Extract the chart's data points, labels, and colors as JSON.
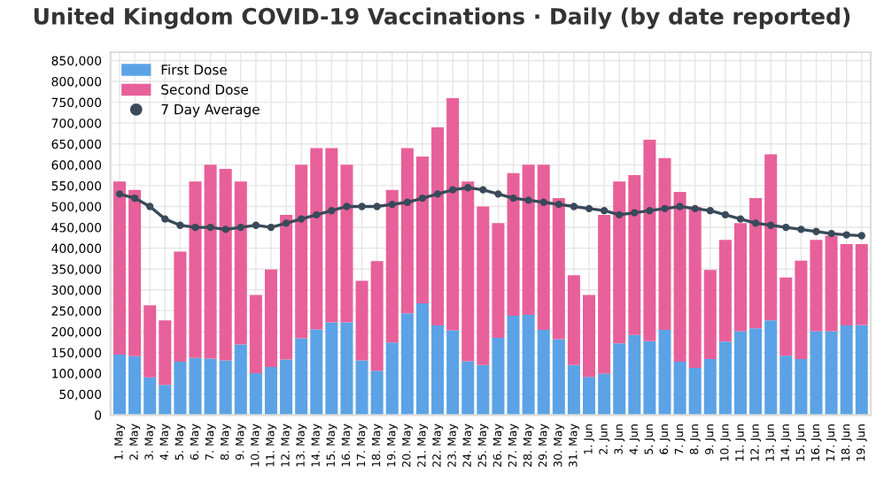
{
  "chart_data": {
    "type": "bar",
    "stacked": true,
    "title": "United Kingdom COVID-19 Vaccinations · Daily (by date reported)",
    "categories": [
      "1. May",
      "2. May",
      "3. May",
      "4. May",
      "5. May",
      "6. May",
      "7. May",
      "8. May",
      "9. May",
      "10. May",
      "11. May",
      "12. May",
      "13. May",
      "14. May",
      "15. May",
      "16. May",
      "17. May",
      "18. May",
      "19. May",
      "20. May",
      "21. May",
      "22. May",
      "23. May",
      "24. May",
      "25. May",
      "26. May",
      "27. May",
      "28. May",
      "29. May",
      "30. May",
      "31. May",
      "1. Jun",
      "2. Jun",
      "3. Jun",
      "4. Jun",
      "5. Jun",
      "6. Jun",
      "7. Jun",
      "8. Jun",
      "9. Jun",
      "10. Jun",
      "11. Jun",
      "12. Jun",
      "13. Jun",
      "14. Jun",
      "15. Jun",
      "16. Jun",
      "17. Jun",
      "18. Jun",
      "19. Jun"
    ],
    "series": [
      {
        "name": "First Dose",
        "color": "#5ba3e6",
        "values": [
          145000,
          141000,
          90000,
          72000,
          128000,
          137000,
          135000,
          131000,
          169000,
          100000,
          115000,
          133000,
          184000,
          205000,
          222000,
          222000,
          131000,
          106000,
          174000,
          244000,
          268000,
          215000,
          203000,
          129000,
          120000,
          185000,
          238000,
          240000,
          204000,
          182000,
          120000,
          91000,
          99000,
          172000,
          192000,
          177000,
          204000,
          128000,
          113000,
          134000,
          176000,
          201000,
          208000,
          227000,
          142000,
          134000,
          201000,
          201000,
          215000,
          216000
        ]
      },
      {
        "name": "Second Dose",
        "color": "#e8609a",
        "values": [
          415000,
          399000,
          173000,
          155000,
          264000,
          423000,
          465000,
          459000,
          391000,
          188000,
          234000,
          347000,
          416000,
          435000,
          418000,
          378000,
          191000,
          263000,
          366000,
          396000,
          352000,
          475000,
          557000,
          431000,
          380000,
          275000,
          342000,
          360000,
          396000,
          338000,
          215000,
          197000,
          381000,
          388000,
          383000,
          483000,
          412000,
          407000,
          386000,
          214000,
          244000,
          259000,
          312000,
          398000,
          188000,
          236000,
          219000,
          229000,
          195000,
          194000
        ]
      },
      {
        "name": "7 Day Average",
        "type": "line",
        "color": "#3a4a5a",
        "marker": "circle",
        "values": [
          530000,
          520000,
          500000,
          470000,
          455000,
          450000,
          450000,
          445000,
          450000,
          455000,
          450000,
          460000,
          470000,
          480000,
          490000,
          500000,
          500000,
          500000,
          505000,
          510000,
          520000,
          530000,
          540000,
          545000,
          540000,
          530000,
          520000,
          515000,
          510000,
          505000,
          500000,
          495000,
          490000,
          480000,
          485000,
          490000,
          495000,
          500000,
          495000,
          490000,
          480000,
          470000,
          460000,
          455000,
          450000,
          445000,
          440000,
          435000,
          432000,
          430000
        ]
      }
    ],
    "ylim": [
      0,
      870000
    ],
    "yticks": [
      {
        "value": 0,
        "label": "0"
      },
      {
        "value": 50000,
        "label": "50,000"
      },
      {
        "value": 100000,
        "label": "100,000"
      },
      {
        "value": 150000,
        "label": "150,000"
      },
      {
        "value": 200000,
        "label": "200,000"
      },
      {
        "value": 250000,
        "label": "250,000"
      },
      {
        "value": 300000,
        "label": "300,000"
      },
      {
        "value": 350000,
        "label": "350,000"
      },
      {
        "value": 400000,
        "label": "400,000"
      },
      {
        "value": 450000,
        "label": "450,000"
      },
      {
        "value": 500000,
        "label": "500,000"
      },
      {
        "value": 550000,
        "label": "550,000"
      },
      {
        "value": 600000,
        "label": "600,000"
      },
      {
        "value": 650000,
        "label": "650,000"
      },
      {
        "value": 700000,
        "label": "700,000"
      },
      {
        "value": 750000,
        "label": "750,000"
      },
      {
        "value": 800000,
        "label": "800,000"
      },
      {
        "value": 850000,
        "label": "850,000"
      }
    ],
    "grid": true,
    "legend": "top left"
  }
}
